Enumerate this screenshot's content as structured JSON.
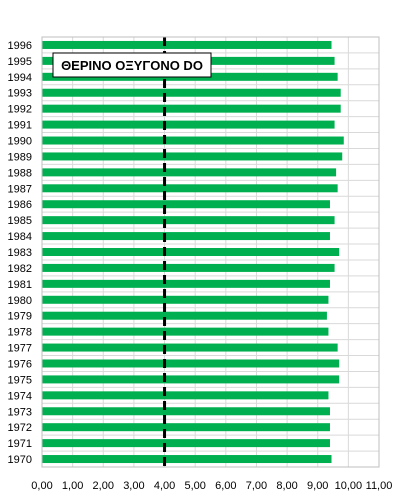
{
  "chart_data": {
    "type": "bar",
    "orientation": "horizontal",
    "title": "ΘΕΡΙΝΟ ΟΞΥΓΟΝΟ DO",
    "categories": [
      "1970",
      "1971",
      "1972",
      "1973",
      "1974",
      "1975",
      "1976",
      "1977",
      "1978",
      "1979",
      "1980",
      "1981",
      "1982",
      "1983",
      "1984",
      "1985",
      "1986",
      "1987",
      "1988",
      "1989",
      "1990",
      "1991",
      "1992",
      "1993",
      "1994",
      "1995",
      "1996"
    ],
    "values": [
      9.45,
      9.4,
      9.4,
      9.4,
      9.35,
      9.7,
      9.7,
      9.65,
      9.35,
      9.3,
      9.35,
      9.4,
      9.55,
      9.7,
      9.4,
      9.55,
      9.4,
      9.65,
      9.6,
      9.8,
      9.85,
      9.55,
      9.75,
      9.75,
      9.65,
      9.55,
      9.45
    ],
    "xlim": [
      0,
      11
    ],
    "x_ticks": [
      "0,00",
      "1,00",
      "2,00",
      "3,00",
      "4,00",
      "5,00",
      "6,00",
      "7,00",
      "8,00",
      "9,00",
      "10,00",
      "11,00"
    ],
    "reference_line": {
      "x": 4.0,
      "style": "dashed"
    },
    "grid": true,
    "bar_color": "#00b050",
    "grid_color": "#d9d9d9",
    "reference_line_color": "#000000"
  }
}
